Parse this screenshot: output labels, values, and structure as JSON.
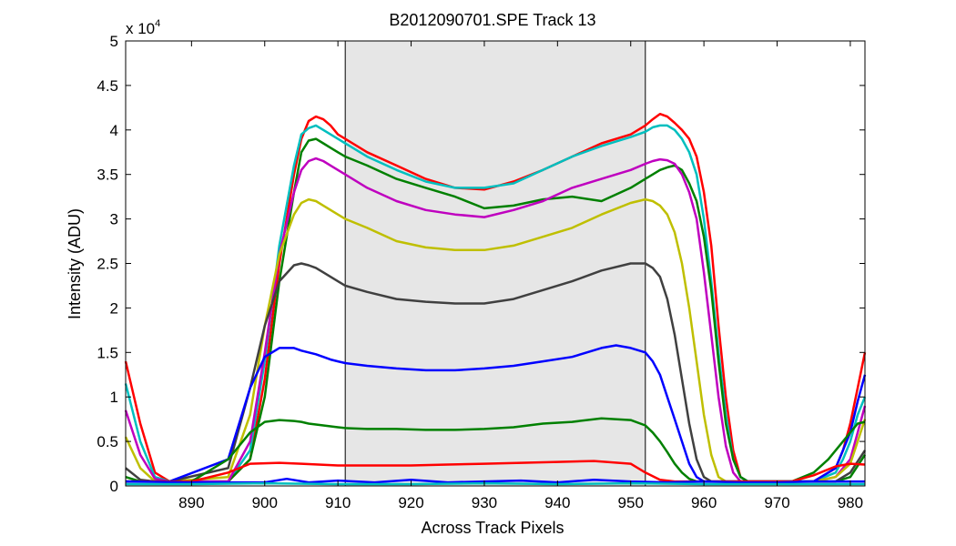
{
  "chart_data": {
    "type": "line",
    "title": "B2012090701.SPE   Track 13",
    "xlabel": "Across Track Pixels",
    "ylabel": "Intensity (ADU)",
    "exponent_label": "x 10",
    "exponent_power": "4",
    "xlim": [
      881,
      982
    ],
    "ylim": [
      0,
      5
    ],
    "xticks": [
      890,
      900,
      910,
      920,
      930,
      940,
      950,
      960,
      970,
      980
    ],
    "yticks": [
      0,
      0.5,
      1,
      1.5,
      2,
      2.5,
      3,
      3.5,
      4,
      4.5,
      5
    ],
    "ytick_labels": [
      "0",
      "0.5",
      "1",
      "1.5",
      "2",
      "2.5",
      "3",
      "3.5",
      "4",
      "4.5",
      "5"
    ],
    "shaded_region": {
      "x_start": 911,
      "x_end": 952,
      "color": "#e6e6e6"
    },
    "series": [
      {
        "name": "red-top",
        "color": "#ff0000",
        "x": [
          881,
          883,
          885,
          887,
          895,
          898,
          900,
          902,
          904,
          905,
          906,
          907,
          908,
          909,
          910,
          911,
          914,
          918,
          922,
          926,
          930,
          934,
          938,
          942,
          946,
          950,
          952,
          953,
          954,
          955,
          956,
          957,
          958,
          959,
          960,
          961,
          962,
          963,
          964,
          965,
          966,
          968,
          975,
          978,
          979,
          980,
          981,
          982
        ],
        "y": [
          1.4,
          0.7,
          0.15,
          0.05,
          0.05,
          0.3,
          1.2,
          2.5,
          3.5,
          3.9,
          4.1,
          4.15,
          4.12,
          4.05,
          3.95,
          3.9,
          3.75,
          3.6,
          3.45,
          3.35,
          3.33,
          3.42,
          3.55,
          3.7,
          3.85,
          3.95,
          4.05,
          4.12,
          4.18,
          4.15,
          4.08,
          4.0,
          3.9,
          3.7,
          3.3,
          2.7,
          1.8,
          1.0,
          0.4,
          0.1,
          0.05,
          0.05,
          0.05,
          0.2,
          0.4,
          0.7,
          1.1,
          1.5
        ]
      },
      {
        "name": "cyan-top",
        "color": "#00bfbf",
        "x": [
          881,
          883,
          885,
          887,
          895,
          898,
          900,
          902,
          904,
          905,
          906,
          907,
          908,
          909,
          910,
          911,
          914,
          918,
          922,
          926,
          930,
          934,
          938,
          942,
          946,
          950,
          952,
          953,
          954,
          955,
          956,
          957,
          958,
          959,
          960,
          961,
          962,
          963,
          964,
          965,
          966,
          968,
          975,
          978,
          979,
          980,
          981,
          982
        ],
        "y": [
          1.15,
          0.5,
          0.1,
          0.05,
          0.05,
          0.4,
          1.4,
          2.7,
          3.6,
          3.95,
          4.02,
          4.05,
          4.0,
          3.95,
          3.9,
          3.85,
          3.7,
          3.55,
          3.42,
          3.35,
          3.35,
          3.4,
          3.55,
          3.7,
          3.82,
          3.92,
          3.98,
          4.03,
          4.05,
          4.05,
          4.0,
          3.9,
          3.75,
          3.5,
          3.0,
          2.3,
          1.5,
          0.8,
          0.3,
          0.1,
          0.05,
          0.05,
          0.05,
          0.15,
          0.3,
          0.5,
          0.8,
          1.0
        ]
      },
      {
        "name": "green-upper",
        "color": "#008000",
        "x": [
          881,
          883,
          885,
          887,
          895,
          898,
          900,
          902,
          904,
          905,
          906,
          907,
          908,
          909,
          910,
          911,
          914,
          918,
          922,
          926,
          930,
          934,
          938,
          942,
          946,
          950,
          952,
          953,
          954,
          955,
          956,
          957,
          958,
          959,
          960,
          961,
          962,
          963,
          964,
          965,
          966,
          968,
          975,
          978,
          980,
          982
        ],
        "y": [
          0.1,
          0.05,
          0.05,
          0.05,
          0.05,
          0.3,
          1.0,
          2.3,
          3.3,
          3.75,
          3.88,
          3.9,
          3.85,
          3.8,
          3.75,
          3.7,
          3.6,
          3.45,
          3.35,
          3.25,
          3.12,
          3.15,
          3.22,
          3.25,
          3.2,
          3.35,
          3.45,
          3.5,
          3.55,
          3.58,
          3.6,
          3.55,
          3.4,
          3.2,
          2.8,
          2.2,
          1.4,
          0.7,
          0.3,
          0.1,
          0.05,
          0.05,
          0.05,
          0.05,
          0.1,
          0.35
        ]
      },
      {
        "name": "magenta",
        "color": "#bf00bf",
        "x": [
          881,
          883,
          885,
          887,
          895,
          898,
          900,
          902,
          904,
          905,
          906,
          907,
          908,
          909,
          910,
          911,
          914,
          918,
          922,
          926,
          930,
          934,
          938,
          942,
          946,
          950,
          952,
          953,
          954,
          955,
          956,
          957,
          958,
          959,
          960,
          961,
          962,
          963,
          964,
          965,
          968,
          975,
          978,
          980,
          981,
          982
        ],
        "y": [
          0.85,
          0.35,
          0.08,
          0.05,
          0.05,
          0.5,
          1.5,
          2.6,
          3.3,
          3.55,
          3.65,
          3.68,
          3.65,
          3.6,
          3.55,
          3.5,
          3.35,
          3.2,
          3.1,
          3.05,
          3.02,
          3.1,
          3.2,
          3.35,
          3.45,
          3.55,
          3.62,
          3.65,
          3.67,
          3.66,
          3.62,
          3.5,
          3.3,
          3.0,
          2.4,
          1.7,
          1.0,
          0.45,
          0.15,
          0.05,
          0.05,
          0.05,
          0.1,
          0.3,
          0.6,
          0.9
        ]
      },
      {
        "name": "yellow",
        "color": "#bfbf00",
        "x": [
          881,
          883,
          885,
          887,
          895,
          898,
          900,
          902,
          904,
          905,
          906,
          907,
          908,
          909,
          910,
          911,
          914,
          918,
          922,
          926,
          930,
          934,
          938,
          942,
          946,
          950,
          952,
          953,
          954,
          955,
          956,
          957,
          958,
          959,
          960,
          961,
          962,
          963,
          964,
          968,
          975,
          978,
          980,
          981,
          982
        ],
        "y": [
          0.55,
          0.2,
          0.05,
          0.05,
          0.1,
          0.8,
          1.8,
          2.6,
          3.05,
          3.18,
          3.22,
          3.2,
          3.15,
          3.1,
          3.05,
          3.0,
          2.9,
          2.75,
          2.68,
          2.65,
          2.65,
          2.7,
          2.8,
          2.9,
          3.05,
          3.18,
          3.22,
          3.2,
          3.15,
          3.05,
          2.85,
          2.5,
          2.0,
          1.4,
          0.8,
          0.35,
          0.1,
          0.05,
          0.05,
          0.05,
          0.05,
          0.1,
          0.25,
          0.5,
          0.75
        ]
      },
      {
        "name": "gray",
        "color": "#404040",
        "x": [
          881,
          883,
          885,
          887,
          895,
          898,
          900,
          902,
          904,
          905,
          906,
          907,
          908,
          909,
          910,
          911,
          914,
          918,
          922,
          926,
          930,
          934,
          938,
          942,
          946,
          950,
          952,
          953,
          954,
          955,
          956,
          957,
          958,
          959,
          960,
          961,
          962,
          963,
          968,
          975,
          978,
          980,
          982
        ],
        "y": [
          0.2,
          0.07,
          0.05,
          0.05,
          0.2,
          1.1,
          1.8,
          2.3,
          2.48,
          2.5,
          2.48,
          2.45,
          2.4,
          2.35,
          2.3,
          2.25,
          2.18,
          2.1,
          2.07,
          2.05,
          2.05,
          2.1,
          2.2,
          2.3,
          2.42,
          2.5,
          2.5,
          2.45,
          2.35,
          2.1,
          1.7,
          1.2,
          0.7,
          0.3,
          0.1,
          0.05,
          0.05,
          0.05,
          0.05,
          0.05,
          0.05,
          0.15,
          0.4
        ]
      },
      {
        "name": "blue-mid",
        "color": "#0000ff",
        "x": [
          881,
          883,
          885,
          887,
          895,
          898,
          900,
          902,
          904,
          905,
          906,
          907,
          908,
          909,
          910,
          911,
          914,
          918,
          922,
          926,
          930,
          934,
          938,
          942,
          946,
          948,
          950,
          952,
          953,
          954,
          955,
          956,
          957,
          958,
          959,
          960,
          961,
          962,
          968,
          975,
          978,
          980,
          981,
          982
        ],
        "y": [
          0.05,
          0.05,
          0.05,
          0.05,
          0.3,
          1.1,
          1.45,
          1.55,
          1.55,
          1.52,
          1.5,
          1.48,
          1.45,
          1.42,
          1.4,
          1.38,
          1.35,
          1.32,
          1.3,
          1.3,
          1.32,
          1.35,
          1.4,
          1.45,
          1.55,
          1.58,
          1.55,
          1.5,
          1.4,
          1.25,
          1.0,
          0.75,
          0.5,
          0.25,
          0.1,
          0.05,
          0.05,
          0.05,
          0.05,
          0.05,
          0.2,
          0.6,
          0.95,
          1.25
        ]
      },
      {
        "name": "green-lower",
        "color": "#008000",
        "x": [
          881,
          885,
          890,
          895,
          898,
          900,
          902,
          904,
          905,
          906,
          908,
          910,
          911,
          914,
          918,
          922,
          926,
          930,
          934,
          938,
          942,
          946,
          950,
          952,
          953,
          954,
          955,
          956,
          957,
          958,
          959,
          960,
          962,
          968,
          972,
          975,
          977,
          979,
          980,
          981,
          982
        ],
        "y": [
          0.05,
          0.05,
          0.05,
          0.3,
          0.6,
          0.72,
          0.74,
          0.73,
          0.72,
          0.7,
          0.68,
          0.66,
          0.65,
          0.64,
          0.64,
          0.63,
          0.63,
          0.64,
          0.66,
          0.7,
          0.72,
          0.76,
          0.74,
          0.68,
          0.6,
          0.5,
          0.38,
          0.25,
          0.15,
          0.08,
          0.05,
          0.05,
          0.05,
          0.05,
          0.05,
          0.15,
          0.3,
          0.5,
          0.6,
          0.7,
          0.72
        ]
      },
      {
        "name": "red-low",
        "color": "#ff0000",
        "x": [
          881,
          885,
          890,
          895,
          898,
          902,
          905,
          910,
          915,
          920,
          925,
          930,
          935,
          940,
          945,
          950,
          952,
          954,
          956,
          958,
          968,
          972,
          975,
          978,
          980,
          982
        ],
        "y": [
          0.05,
          0.05,
          0.05,
          0.15,
          0.25,
          0.26,
          0.25,
          0.23,
          0.23,
          0.23,
          0.24,
          0.25,
          0.26,
          0.27,
          0.28,
          0.25,
          0.15,
          0.07,
          0.05,
          0.05,
          0.05,
          0.05,
          0.12,
          0.22,
          0.25,
          0.24
        ]
      },
      {
        "name": "blue-base",
        "color": "#0000ff",
        "x": [
          881,
          890,
          900,
          903,
          906,
          910,
          915,
          920,
          925,
          930,
          935,
          940,
          945,
          950,
          955,
          960,
          965,
          970,
          975,
          982
        ],
        "y": [
          0.05,
          0.04,
          0.04,
          0.08,
          0.04,
          0.06,
          0.04,
          0.07,
          0.04,
          0.05,
          0.06,
          0.04,
          0.07,
          0.05,
          0.04,
          0.05,
          0.04,
          0.04,
          0.05,
          0.05
        ]
      },
      {
        "name": "cyan-base",
        "color": "#00bfbf",
        "x": [
          881,
          890,
          900,
          910,
          920,
          930,
          940,
          950,
          960,
          970,
          982
        ],
        "y": [
          0.02,
          0.02,
          0.03,
          0.02,
          0.02,
          0.03,
          0.02,
          0.03,
          0.02,
          0.02,
          0.02
        ]
      }
    ]
  }
}
